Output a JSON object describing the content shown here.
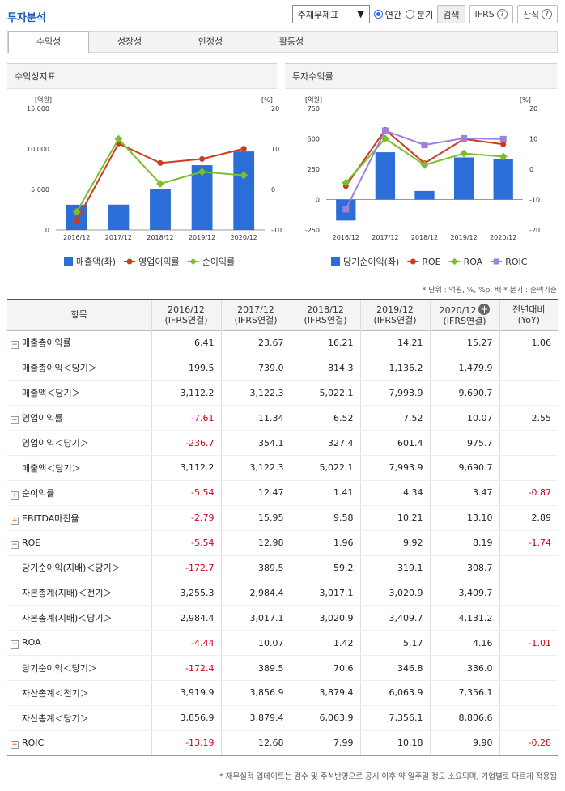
{
  "header": {
    "title": "투자분석",
    "select_value": "주재무제표",
    "radio_annual": "연간",
    "radio_quarter": "분기",
    "search_label": "검색",
    "ifrs_label": "IFRS",
    "formula_label": "산식"
  },
  "tabs": [
    "수익성",
    "성장성",
    "안정성",
    "활동성"
  ],
  "left_panel": {
    "title": "수익성지표"
  },
  "right_panel": {
    "title": "투자수익률"
  },
  "colors": {
    "bar": "#2b6ed8",
    "red": "#cc3a1f",
    "green": "#7cbf2a",
    "purple": "#a07fd8"
  },
  "chart_data": [
    {
      "type": "bar+line",
      "title": "수익성지표",
      "categories": [
        "2016/12",
        "2017/12",
        "2018/12",
        "2019/12",
        "2020/12"
      ],
      "left_axis": {
        "label": "[억원]",
        "ticks": [
          "15,000",
          "10,000",
          "5,000",
          "0"
        ],
        "ylim": [
          0,
          15000
        ]
      },
      "right_axis": {
        "label": "[%]",
        "ticks": [
          "20",
          "10",
          "0",
          "-10"
        ],
        "ylim": [
          -10,
          20
        ]
      },
      "series": [
        {
          "name": "매출액(좌)",
          "kind": "bar",
          "values": [
            3112.2,
            3122.3,
            5022.1,
            7993.9,
            9690.7
          ]
        },
        {
          "name": "영업이익률",
          "kind": "line",
          "color": "red",
          "values": [
            -7.61,
            11.34,
            6.52,
            7.52,
            10.07
          ]
        },
        {
          "name": "순이익률",
          "kind": "line",
          "color": "green",
          "values": [
            -5.54,
            12.47,
            1.41,
            4.34,
            3.47
          ]
        }
      ]
    },
    {
      "type": "bar+line",
      "title": "투자수익률",
      "categories": [
        "2016/12",
        "2017/12",
        "2018/12",
        "2019/12",
        "2020/12"
      ],
      "left_axis": {
        "label": "[억원]",
        "ticks": [
          "750",
          "500",
          "250",
          "0",
          "-250"
        ],
        "ylim": [
          -250,
          750
        ]
      },
      "right_axis": {
        "label": "[%]",
        "ticks": [
          "20",
          "10",
          "0",
          "-10",
          "-20"
        ],
        "ylim": [
          -20,
          20
        ]
      },
      "series": [
        {
          "name": "당기순이익(좌)",
          "kind": "bar",
          "values": [
            -172.4,
            389.5,
            70.6,
            346.8,
            336.0
          ]
        },
        {
          "name": "ROE",
          "kind": "line",
          "color": "red",
          "values": [
            -5.54,
            12.98,
            1.96,
            9.92,
            8.19
          ]
        },
        {
          "name": "ROA",
          "kind": "line",
          "color": "green",
          "values": [
            -4.44,
            10.07,
            1.42,
            5.17,
            4.16
          ]
        },
        {
          "name": "ROIC",
          "kind": "line",
          "color": "purple",
          "values": [
            -13.19,
            12.68,
            7.99,
            10.18,
            9.9
          ]
        }
      ]
    }
  ],
  "note": "* 단위 : 억원, %, %p, 배   * 분기 : 순액기준",
  "table": {
    "headers": [
      [
        "항목"
      ],
      [
        "2016/12",
        "(IFRS연결)"
      ],
      [
        "2017/12",
        "(IFRS연결)"
      ],
      [
        "2018/12",
        "(IFRS연결)"
      ],
      [
        "2019/12",
        "(IFRS연결)"
      ],
      [
        "2020/12",
        "(IFRS연결)"
      ],
      [
        "전년대비",
        "(YoY)"
      ]
    ],
    "rows": [
      {
        "label": "매출총이익률",
        "type": "minus",
        "vals": [
          "6.41",
          "23.67",
          "16.21",
          "14.21",
          "15.27",
          "1.06"
        ]
      },
      {
        "label": "매출총이익＜당기＞",
        "type": "sub",
        "vals": [
          "199.5",
          "739.0",
          "814.3",
          "1,136.2",
          "1,479.9",
          ""
        ]
      },
      {
        "label": "매출액＜당기＞",
        "type": "sub",
        "vals": [
          "3,112.2",
          "3,122.3",
          "5,022.1",
          "7,993.9",
          "9,690.7",
          ""
        ]
      },
      {
        "label": "영업이익률",
        "type": "minus",
        "vals": [
          "-7.61",
          "11.34",
          "6.52",
          "7.52",
          "10.07",
          "2.55"
        ]
      },
      {
        "label": "영업이익＜당기＞",
        "type": "sub",
        "vals": [
          "-236.7",
          "354.1",
          "327.4",
          "601.4",
          "975.7",
          ""
        ]
      },
      {
        "label": "매출액＜당기＞",
        "type": "sub",
        "vals": [
          "3,112.2",
          "3,122.3",
          "5,022.1",
          "7,993.9",
          "9,690.7",
          ""
        ]
      },
      {
        "label": "순이익률",
        "type": "plus",
        "vals": [
          "-5.54",
          "12.47",
          "1.41",
          "4.34",
          "3.47",
          "-0.87"
        ]
      },
      {
        "label": "EBITDA마진율",
        "type": "plus",
        "vals": [
          "-2.79",
          "15.95",
          "9.58",
          "10.21",
          "13.10",
          "2.89"
        ]
      },
      {
        "label": "ROE",
        "type": "minus",
        "vals": [
          "-5.54",
          "12.98",
          "1.96",
          "9.92",
          "8.19",
          "-1.74"
        ]
      },
      {
        "label": "당기순이익(지배)＜당기＞",
        "type": "sub",
        "vals": [
          "-172.7",
          "389.5",
          "59.2",
          "319.1",
          "308.7",
          ""
        ]
      },
      {
        "label": "자본총계(지배)＜전기＞",
        "type": "sub",
        "vals": [
          "3,255.3",
          "2,984.4",
          "3,017.1",
          "3,020.9",
          "3,409.7",
          ""
        ]
      },
      {
        "label": "자본총계(지배)＜당기＞",
        "type": "sub",
        "vals": [
          "2,984.4",
          "3,017.1",
          "3,020.9",
          "3,409.7",
          "4,131.2",
          ""
        ]
      },
      {
        "label": "ROA",
        "type": "minus",
        "vals": [
          "-4.44",
          "10.07",
          "1.42",
          "5.17",
          "4.16",
          "-1.01"
        ]
      },
      {
        "label": "당기순이익＜당기＞",
        "type": "sub",
        "vals": [
          "-172.4",
          "389.5",
          "70.6",
          "346.8",
          "336.0",
          ""
        ]
      },
      {
        "label": "자산총계＜전기＞",
        "type": "sub",
        "vals": [
          "3,919.9",
          "3,856.9",
          "3,879.4",
          "6,063.9",
          "7,356.1",
          ""
        ]
      },
      {
        "label": "자산총계＜당기＞",
        "type": "sub",
        "vals": [
          "3,856.9",
          "3,879.4",
          "6,063.9",
          "7,356.1",
          "8,806.6",
          ""
        ]
      },
      {
        "label": "ROIC",
        "type": "plus",
        "vals": [
          "-13.19",
          "12.68",
          "7.99",
          "10.18",
          "9.90",
          "-0.28"
        ]
      }
    ]
  },
  "footer": "* 재무실적 업데이트는 검수 및 주석반영으로 공시 이후 약 일주일 정도 소요되며, 기업별로 다르게 적용됨"
}
